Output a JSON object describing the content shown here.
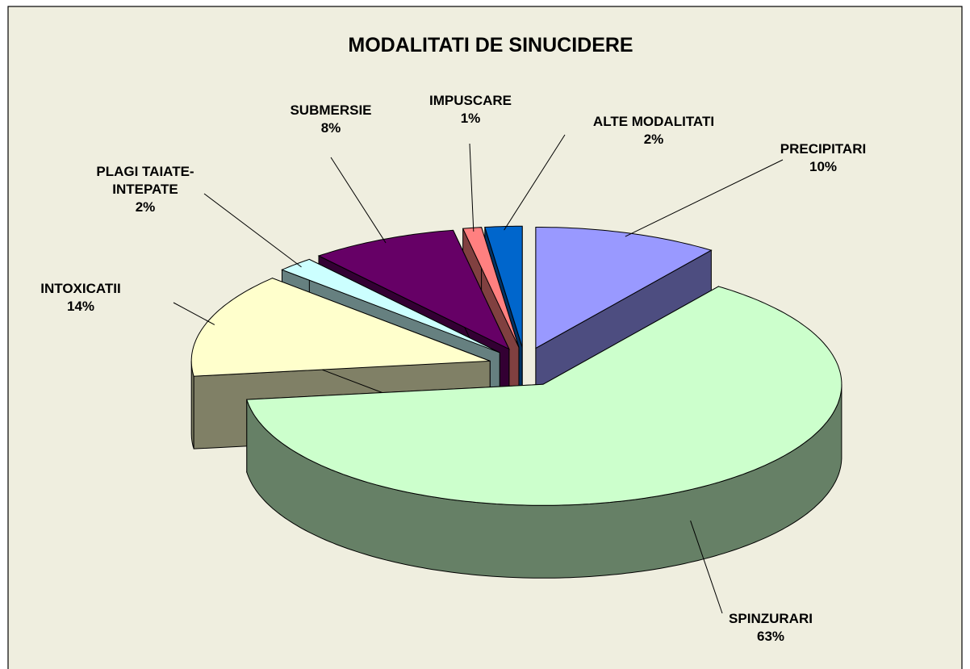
{
  "chart_data": {
    "type": "pie",
    "title": "MODALITATI DE SINUCIDERE",
    "categories": [
      "PRECIPITARI",
      "SPINZURARI",
      "INTOXICATII",
      "PLAGI TAIATE-INTEPATE",
      "SUBMERSIE",
      "IMPUSCARE",
      "ALTE MODALITATI"
    ],
    "values": [
      10,
      63,
      14,
      2,
      8,
      1,
      2
    ],
    "value_labels": [
      "10%",
      "63%",
      "14%",
      "2%",
      "8%",
      "1%",
      "2%"
    ],
    "colors": [
      "#9999ff",
      "#ccffcc",
      "#ffffcc",
      "#ccffff",
      "#660066",
      "#ff8080",
      "#0066cc"
    ],
    "three_d": true,
    "exploded": true
  }
}
